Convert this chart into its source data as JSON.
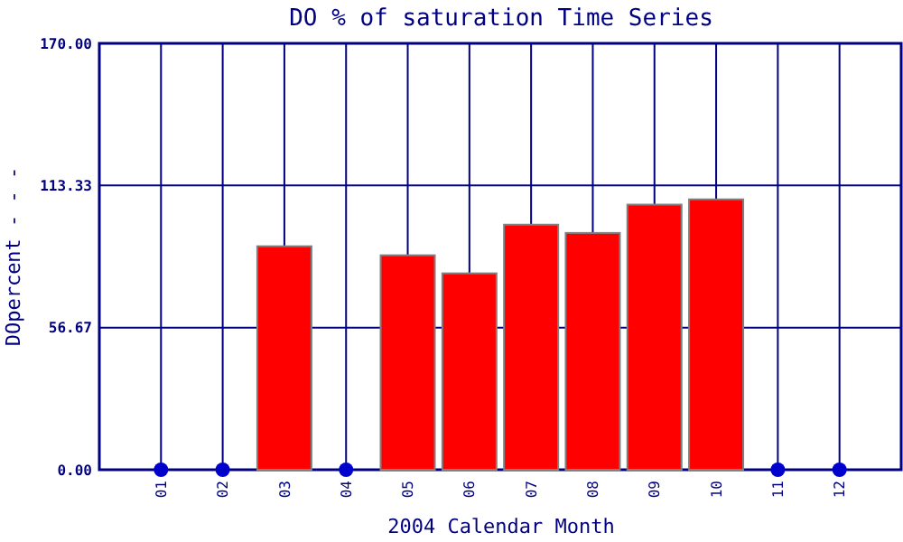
{
  "chart_data": {
    "type": "bar",
    "title": "DO % of saturation Time Series",
    "xlabel": "2004 Calendar Month",
    "ylabel": "DOpercent - - -",
    "categories": [
      "01",
      "02",
      "03",
      "04",
      "05",
      "06",
      "07",
      "08",
      "09",
      "10",
      "11",
      "12"
    ],
    "series": [
      {
        "color": "#ff0000",
        "values": [
          null,
          null,
          89.1,
          null,
          85.5,
          78.3,
          97.7,
          94.4,
          105.7,
          107.8,
          null,
          null
        ]
      },
      {
        "type": "scatter",
        "color": "#0000cc",
        "x": [
          "01",
          "02",
          "04",
          "11",
          "12"
        ],
        "values": [
          0,
          0,
          0,
          0,
          0
        ]
      }
    ],
    "ylim": [
      0,
      170
    ],
    "yticks": [
      {
        "value": 0,
        "label": "0.00"
      },
      {
        "value": 56.67,
        "label": "56.67"
      },
      {
        "value": 113.33,
        "label": "113.33"
      },
      {
        "value": 170,
        "label": "170.00"
      }
    ],
    "grid": true,
    "marker": "circle"
  }
}
